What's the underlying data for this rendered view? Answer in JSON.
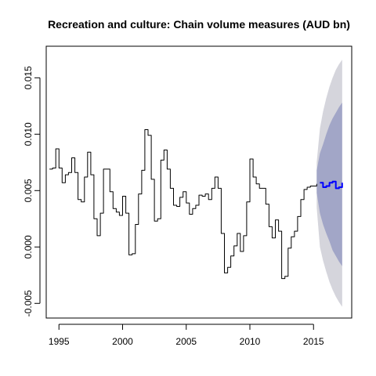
{
  "chart_data": {
    "type": "line",
    "title": "Recreation and culture: Chain volume measures (AUD bn)",
    "xlabel": "",
    "ylabel": "",
    "xlim": [
      1994,
      2018
    ],
    "ylim": [
      -0.0063,
      0.0178
    ],
    "x_ticks": [
      1995,
      2000,
      2005,
      2010,
      2015
    ],
    "y_ticks": [
      -0.005,
      0,
      0.005,
      0.01,
      0.015
    ],
    "x_tick_labels": [
      "1995",
      "2000",
      "2005",
      "2010",
      "2015"
    ],
    "y_tick_labels": [
      "-0.005",
      "0.000",
      "0.005",
      "0.010",
      "0.015"
    ],
    "grid": false,
    "legend": "none",
    "series": [
      {
        "role": "observed",
        "color": "#000000",
        "x": [
          1994.25,
          1994.5,
          1994.75,
          1995,
          1995.25,
          1995.5,
          1995.75,
          1996,
          1996.25,
          1996.5,
          1996.75,
          1997,
          1997.25,
          1997.5,
          1997.75,
          1998,
          1998.25,
          1998.5,
          1998.75,
          1999,
          1999.25,
          1999.5,
          1999.75,
          2000,
          2000.25,
          2000.5,
          2000.75,
          2001,
          2001.25,
          2001.5,
          2001.75,
          2002,
          2002.25,
          2002.5,
          2002.75,
          2003,
          2003.25,
          2003.5,
          2003.75,
          2004,
          2004.25,
          2004.5,
          2004.75,
          2005,
          2005.25,
          2005.5,
          2005.75,
          2006,
          2006.25,
          2006.5,
          2006.75,
          2007,
          2007.25,
          2007.5,
          2007.75,
          2008,
          2008.25,
          2008.5,
          2008.75,
          2009,
          2009.25,
          2009.5,
          2009.75,
          2010,
          2010.25,
          2010.5,
          2010.75,
          2011,
          2011.25,
          2011.5,
          2011.75,
          2012,
          2012.25,
          2012.5,
          2012.75,
          2013,
          2013.25,
          2013.5,
          2013.75,
          2014,
          2014.25,
          2014.5,
          2014.75,
          2015,
          2015.25
        ],
        "y": [
          0.0069,
          0.007,
          0.0087,
          0.007,
          0.0057,
          0.0064,
          0.0066,
          0.0079,
          0.0066,
          0.0042,
          0.004,
          0.0062,
          0.0084,
          0.0064,
          0.0025,
          0.001,
          0.003,
          0.0069,
          0.0069,
          0.0049,
          0.0034,
          0.0031,
          0.0028,
          0.0045,
          0.003,
          -0.0007,
          -0.0006,
          0.002,
          0.0047,
          0.0068,
          0.0104,
          0.0099,
          0.006,
          0.0023,
          0.0025,
          0.0077,
          0.0086,
          0.0069,
          0.0052,
          0.0037,
          0.0036,
          0.0044,
          0.0049,
          0.0039,
          0.0029,
          0.0034,
          0.0037,
          0.0046,
          0.0045,
          0.0047,
          0.0042,
          0.0052,
          0.0062,
          0.0052,
          0.0012,
          -0.0023,
          -0.0018,
          -0.0008,
          0.0001,
          0.0012,
          -0.0004,
          0.001,
          0.004,
          0.0078,
          0.0062,
          0.0056,
          0.0052,
          0.0052,
          0.0038,
          0.0018,
          0.0008,
          0.0024,
          0.0014,
          -0.0028,
          -0.0026,
          -0.0001,
          0.0009,
          0.0014,
          0.0027,
          0.0042,
          0.0051,
          0.0053,
          0.0054,
          0.0054,
          0.0056
        ]
      },
      {
        "role": "forecast",
        "color": "#0000ff",
        "x": [
          2015.5,
          2015.75,
          2016,
          2016.25,
          2016.5,
          2016.75,
          2017,
          2017.25
        ],
        "y": [
          0.0057,
          0.0053,
          0.0054,
          0.0057,
          0.0058,
          0.0052,
          0.0053,
          0.0057
        ]
      }
    ],
    "bands": [
      {
        "level": "outer",
        "color": "#d5d5dc",
        "x": [
          2015.25,
          2015.5,
          2015.75,
          2016,
          2016.25,
          2016.5,
          2016.75,
          2017,
          2017.25
        ],
        "lower": [
          0.0035,
          0.0,
          -0.0012,
          -0.0022,
          -0.0031,
          -0.0038,
          -0.0044,
          -0.0049,
          -0.0053
        ],
        "upper": [
          0.0075,
          0.0105,
          0.012,
          0.0132,
          0.0142,
          0.015,
          0.0157,
          0.0162,
          0.0166
        ]
      },
      {
        "level": "inner",
        "color": "#a2a6c7",
        "x": [
          2015.25,
          2015.5,
          2015.75,
          2016,
          2016.25,
          2016.5,
          2016.75,
          2017,
          2017.25
        ],
        "lower": [
          0.0048,
          0.003,
          0.002,
          0.0012,
          0.0005,
          -0.0003,
          -0.0008,
          -0.0013,
          -0.0017
        ],
        "upper": [
          0.0068,
          0.0083,
          0.0091,
          0.01,
          0.0108,
          0.0114,
          0.0119,
          0.0124,
          0.0128
        ]
      }
    ]
  }
}
